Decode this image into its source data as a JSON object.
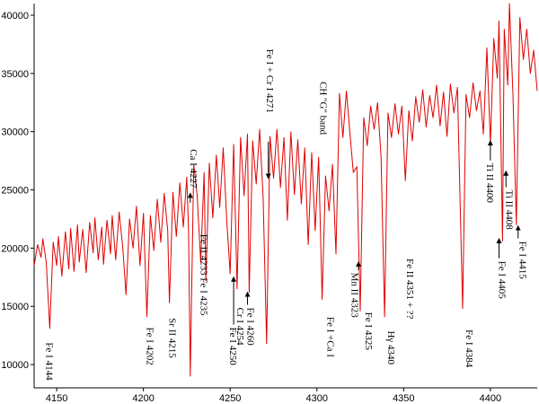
{
  "chart_data": {
    "type": "line",
    "title": "",
    "xlabel": "",
    "ylabel": "",
    "xlim": [
      4137,
      4427
    ],
    "ylim": [
      8000,
      41000
    ],
    "x_ticks": [
      4150,
      4200,
      4250,
      4300,
      4350,
      4400
    ],
    "y_ticks": [
      10000,
      15000,
      20000,
      25000,
      30000,
      35000,
      40000
    ],
    "grid": false,
    "line_color": "#e00000",
    "series": [
      {
        "points": [
          [
            4137,
            18500
          ],
          [
            4139,
            20300
          ],
          [
            4141,
            19200
          ],
          [
            4142,
            20800
          ],
          [
            4144,
            18800
          ],
          [
            4146,
            13100
          ],
          [
            4148,
            20500
          ],
          [
            4150,
            18500
          ],
          [
            4151,
            21000
          ],
          [
            4153,
            17600
          ],
          [
            4155,
            21400
          ],
          [
            4157,
            18200
          ],
          [
            4158,
            21700
          ],
          [
            4160,
            18000
          ],
          [
            4162,
            22000
          ],
          [
            4163,
            18800
          ],
          [
            4165,
            21600
          ],
          [
            4167,
            17900
          ],
          [
            4169,
            22200
          ],
          [
            4171,
            19600
          ],
          [
            4172,
            22600
          ],
          [
            4174,
            19000
          ],
          [
            4176,
            21800
          ],
          [
            4177,
            18600
          ],
          [
            4179,
            22400
          ],
          [
            4181,
            19500
          ],
          [
            4182,
            22800
          ],
          [
            4184,
            19000
          ],
          [
            4186,
            23100
          ],
          [
            4188,
            20200
          ],
          [
            4190,
            16000
          ],
          [
            4192,
            22500
          ],
          [
            4194,
            20000
          ],
          [
            4196,
            23600
          ],
          [
            4198,
            18500
          ],
          [
            4200,
            23000
          ],
          [
            4202,
            14100
          ],
          [
            4204,
            22800
          ],
          [
            4206,
            19800
          ],
          [
            4208,
            24200
          ],
          [
            4210,
            20500
          ],
          [
            4212,
            24700
          ],
          [
            4214,
            21500
          ],
          [
            4215,
            15300
          ],
          [
            4217,
            24800
          ],
          [
            4219,
            21000
          ],
          [
            4221,
            25600
          ],
          [
            4223,
            21800
          ],
          [
            4225,
            26100
          ],
          [
            4226,
            21500
          ],
          [
            4227,
            9000
          ],
          [
            4229,
            27200
          ],
          [
            4231,
            24500
          ],
          [
            4233,
            18800
          ],
          [
            4235,
            26500
          ],
          [
            4236,
            17200
          ],
          [
            4238,
            27300
          ],
          [
            4240,
            22600
          ],
          [
            4242,
            28000
          ],
          [
            4244,
            23500
          ],
          [
            4246,
            28600
          ],
          [
            4248,
            22500
          ],
          [
            4250,
            17800
          ],
          [
            4252,
            28900
          ],
          [
            4254,
            16500
          ],
          [
            4256,
            29500
          ],
          [
            4258,
            24500
          ],
          [
            4260,
            29800
          ],
          [
            4261,
            16200
          ],
          [
            4263,
            29200
          ],
          [
            4265,
            25500
          ],
          [
            4267,
            30200
          ],
          [
            4269,
            24400
          ],
          [
            4271,
            11800
          ],
          [
            4273,
            29600
          ],
          [
            4275,
            26000
          ],
          [
            4277,
            30200
          ],
          [
            4279,
            25200
          ],
          [
            4281,
            29500
          ],
          [
            4283,
            22400
          ],
          [
            4285,
            30000
          ],
          [
            4287,
            24600
          ],
          [
            4289,
            29300
          ],
          [
            4291,
            23800
          ],
          [
            4293,
            28600
          ],
          [
            4295,
            20300
          ],
          [
            4297,
            28200
          ],
          [
            4299,
            21500
          ],
          [
            4301,
            27800
          ],
          [
            4303,
            15600
          ],
          [
            4305,
            26200
          ],
          [
            4307,
            23200
          ],
          [
            4309,
            27200
          ],
          [
            4311,
            19500
          ],
          [
            4313,
            33300
          ],
          [
            4315,
            29500
          ],
          [
            4317,
            33500
          ],
          [
            4319,
            30000
          ],
          [
            4321,
            26500
          ],
          [
            4323,
            27000
          ],
          [
            4325,
            14600
          ],
          [
            4327,
            31200
          ],
          [
            4329,
            28800
          ],
          [
            4331,
            32200
          ],
          [
            4333,
            30200
          ],
          [
            4335,
            32500
          ],
          [
            4337,
            27800
          ],
          [
            4339,
            14100
          ],
          [
            4341,
            31600
          ],
          [
            4343,
            29500
          ],
          [
            4345,
            32400
          ],
          [
            4347,
            29800
          ],
          [
            4349,
            32200
          ],
          [
            4351,
            25800
          ],
          [
            4353,
            31800
          ],
          [
            4355,
            29200
          ],
          [
            4357,
            33000
          ],
          [
            4359,
            30800
          ],
          [
            4361,
            33600
          ],
          [
            4363,
            30400
          ],
          [
            4365,
            33100
          ],
          [
            4367,
            31200
          ],
          [
            4369,
            34000
          ],
          [
            4371,
            30500
          ],
          [
            4373,
            33400
          ],
          [
            4375,
            29600
          ],
          [
            4377,
            34100
          ],
          [
            4379,
            31600
          ],
          [
            4381,
            33800
          ],
          [
            4384,
            14800
          ],
          [
            4386,
            33200
          ],
          [
            4388,
            31200
          ],
          [
            4390,
            34200
          ],
          [
            4392,
            31800
          ],
          [
            4394,
            33500
          ],
          [
            4396,
            29800
          ],
          [
            4398,
            37200
          ],
          [
            4400,
            29000
          ],
          [
            4402,
            38000
          ],
          [
            4404,
            34600
          ],
          [
            4405,
            39500
          ],
          [
            4407,
            20600
          ],
          [
            4408,
            38800
          ],
          [
            4410,
            34000
          ],
          [
            4411,
            41000
          ],
          [
            4413,
            33200
          ],
          [
            4415,
            22000
          ],
          [
            4417,
            39800
          ],
          [
            4419,
            36200
          ],
          [
            4421,
            38800
          ],
          [
            4423,
            35000
          ],
          [
            4425,
            37000
          ],
          [
            4427,
            33500
          ]
        ]
      }
    ],
    "annotations": [
      {
        "text": "Fe I 4144",
        "x": 4144,
        "y": 11900,
        "rotate": true,
        "arrow": false
      },
      {
        "text": "Fe I 4202",
        "x": 4202,
        "y": 13200,
        "rotate": true,
        "arrow": false
      },
      {
        "text": "Sr II 4215",
        "x": 4215,
        "y": 14000,
        "rotate": true,
        "arrow": false
      },
      {
        "text": "Ca I 4227",
        "x": 4227,
        "y": 28500,
        "rotate": true,
        "arrow": true,
        "ax": 4227,
        "ay": 24700
      },
      {
        "text": "Fe II 4233 Fe I 4235",
        "x": 4233,
        "y": 21200,
        "rotate": true,
        "arrow": false
      },
      {
        "text": "Fe I 4250",
        "x": 4250,
        "y": 13200,
        "rotate": true,
        "arrow": true,
        "ax": 4252,
        "ay": 17500
      },
      {
        "text": "Cr I 4254",
        "x": 4254,
        "y": 14900,
        "rotate": true,
        "arrow": false
      },
      {
        "text": "Fe I 4260",
        "x": 4260,
        "y": 14900,
        "rotate": true,
        "arrow": true,
        "ax": 4260,
        "ay": 16200
      },
      {
        "text": "Fe I + Cr I 4271",
        "x": 4271,
        "y": 37100,
        "rotate": true,
        "arrow": true,
        "ax": 4272,
        "ay": 26000
      },
      {
        "text": "CH \"G\" band",
        "x": 4302,
        "y": 34300,
        "rotate": true,
        "arrow": false
      },
      {
        "text": "Fe I +Ca I",
        "x": 4306,
        "y": 14100,
        "rotate": true,
        "arrow": false
      },
      {
        "text": "Mn II 4323",
        "x": 4320,
        "y": 17900,
        "rotate": true,
        "arrow": true,
        "ax": 4324,
        "ay": 18800
      },
      {
        "text": "Fe I 4325",
        "x": 4328,
        "y": 14500,
        "rotate": true,
        "arrow": false
      },
      {
        "text": "Hγ 4340",
        "x": 4341,
        "y": 12900,
        "rotate": true,
        "arrow": false
      },
      {
        "text": "Fe II 4351 + ??",
        "x": 4352,
        "y": 19100,
        "rotate": true,
        "arrow": false
      },
      {
        "text": "Fe I 4384",
        "x": 4386,
        "y": 13000,
        "rotate": true,
        "arrow": false
      },
      {
        "text": "Ti II 4400",
        "x": 4398,
        "y": 27300,
        "rotate": true,
        "arrow": true,
        "ax": 4400,
        "ay": 29200
      },
      {
        "text": "Fe I 4405",
        "x": 4405,
        "y": 18900,
        "rotate": true,
        "arrow": true,
        "ax": 4405,
        "ay": 20800
      },
      {
        "text": "Ti II 4408",
        "x": 4409,
        "y": 25000,
        "rotate": true,
        "arrow": true,
        "ax": 4409,
        "ay": 26600
      },
      {
        "text": "Fe I 4415",
        "x": 4417,
        "y": 20600,
        "rotate": true,
        "arrow": true,
        "ax": 4416,
        "ay": 21900
      }
    ]
  }
}
